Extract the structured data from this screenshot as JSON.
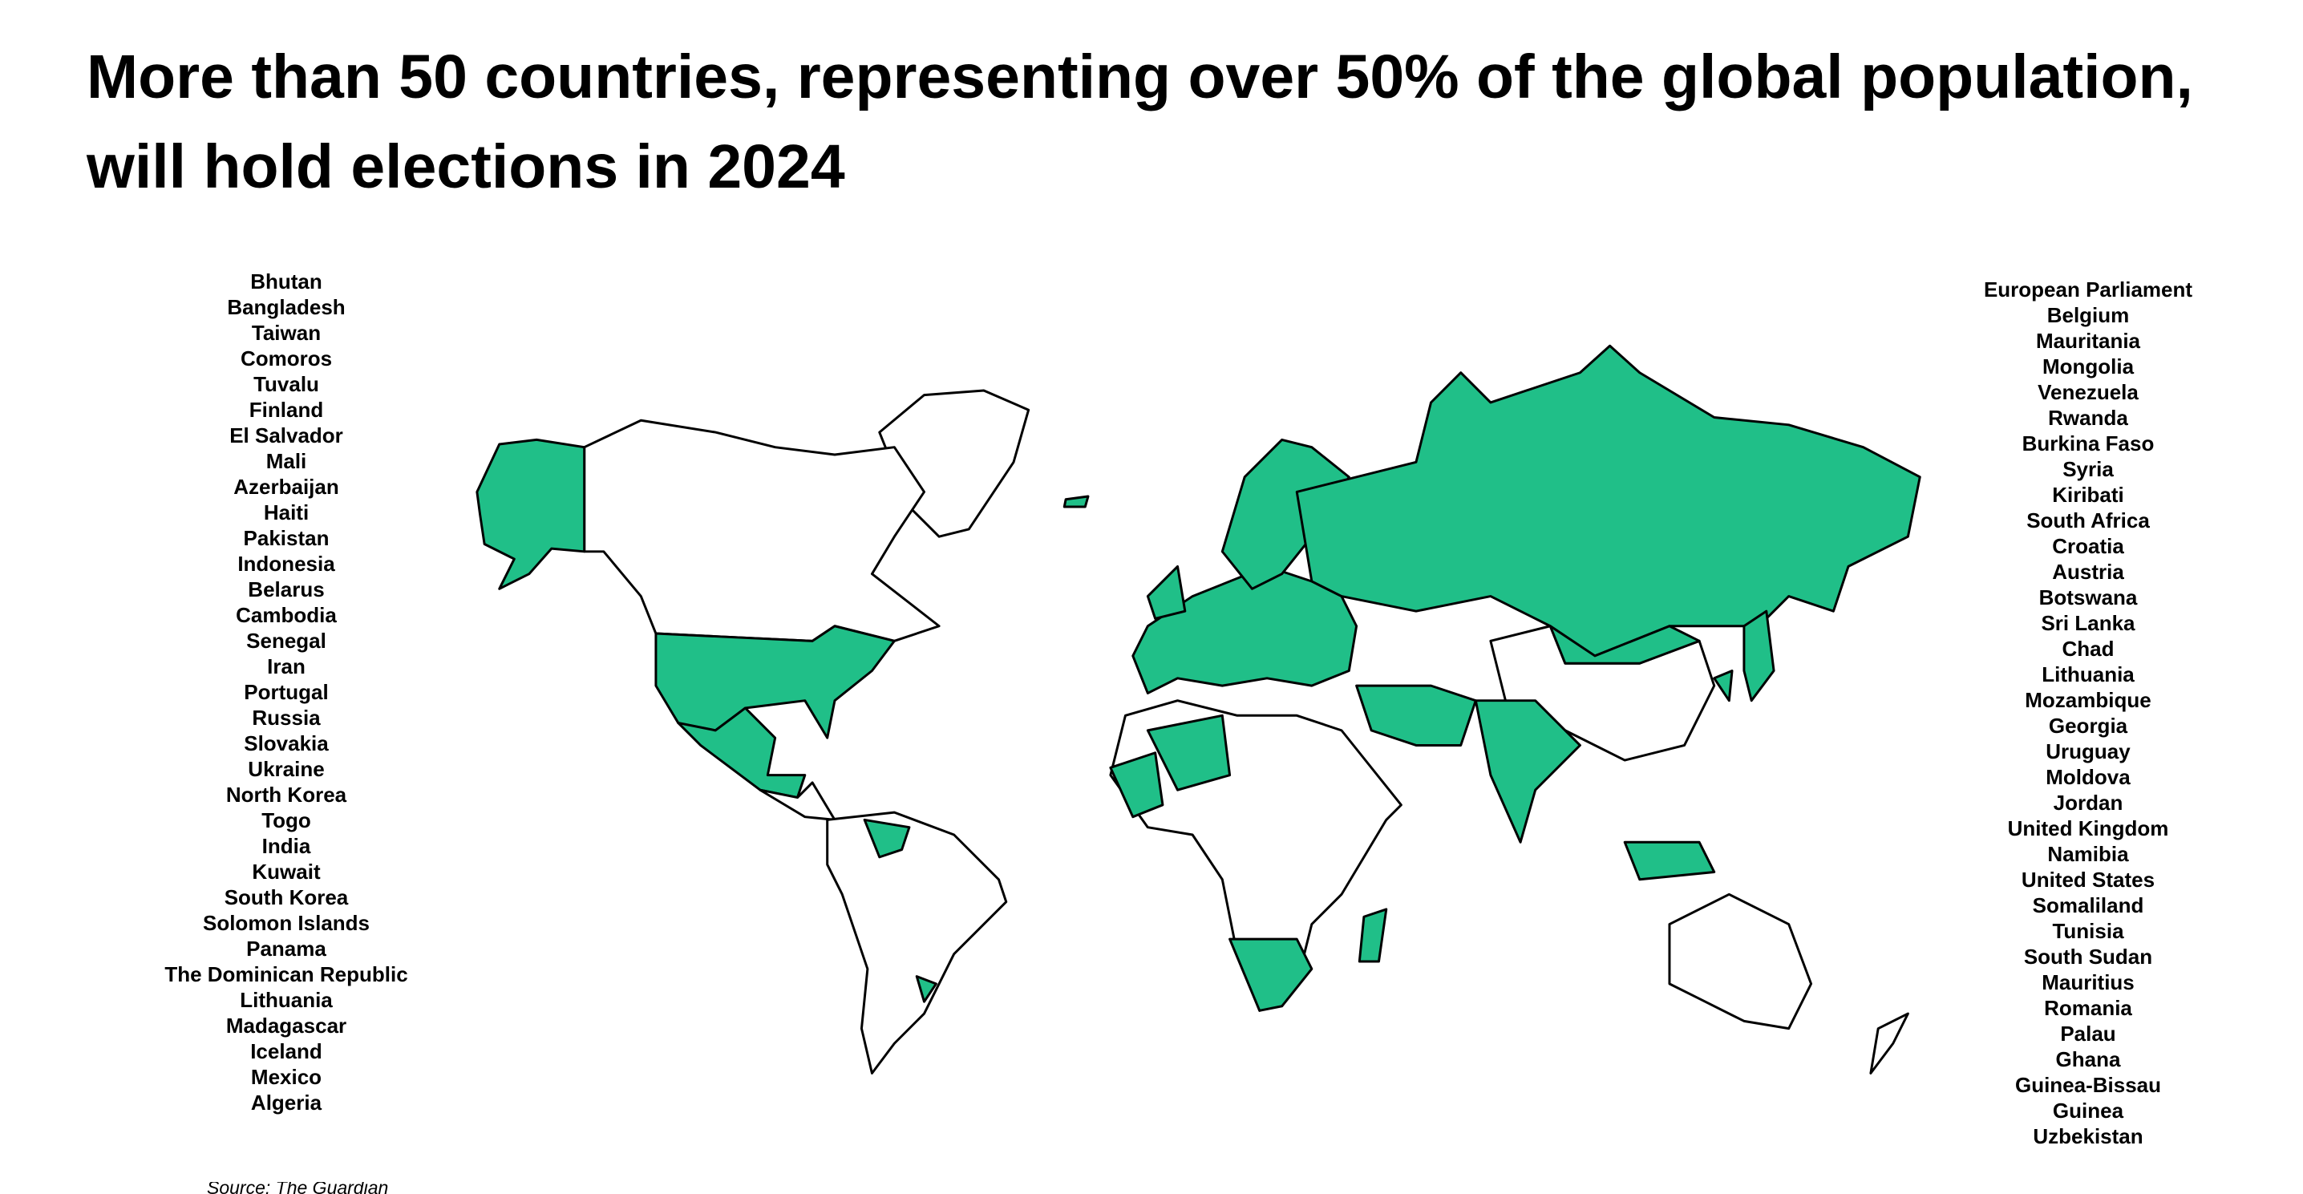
{
  "header": {
    "title": "More than 50 countries, representing over 50% of the global population, will hold elections in 2024"
  },
  "left_list": [
    "Bhutan",
    "Bangladesh",
    "Taiwan",
    "Comoros",
    "Tuvalu",
    "Finland",
    "El Salvador",
    "Mali",
    "Azerbaijan",
    "Haiti",
    "Pakistan",
    "Indonesia",
    "Belarus",
    "Cambodia",
    "Senegal",
    "Iran",
    "Portugal",
    "Russia",
    "Slovakia",
    "Ukraine",
    "North Korea",
    "Togo",
    "India",
    "Kuwait",
    "South Korea",
    "Solomon Islands",
    "Panama",
    "The Dominican Republic",
    "Lithuania",
    "Madagascar",
    "Iceland",
    "Mexico",
    "Algeria"
  ],
  "right_list": [
    "European Parliament",
    "Belgium",
    "Mauritania",
    "Mongolia",
    "Venezuela",
    "Rwanda",
    "Burkina Faso",
    "Syria",
    "Kiribati",
    "South Africa",
    "Croatia",
    "Austria",
    "Botswana",
    "Sri Lanka",
    "Chad",
    "Lithuania",
    "Mozambique",
    "Georgia",
    "Uruguay",
    "Moldova",
    "Jordan",
    "United Kingdom",
    "Namibia",
    "United States",
    "Somaliland",
    "Tunisia",
    "South Sudan",
    "Mauritius",
    "Romania",
    "Palau",
    "Ghana",
    "Guinea-Bissau",
    "Guinea",
    "Uzbekistan"
  ],
  "source": {
    "label": "Source:",
    "link": "The Guardian"
  }
}
